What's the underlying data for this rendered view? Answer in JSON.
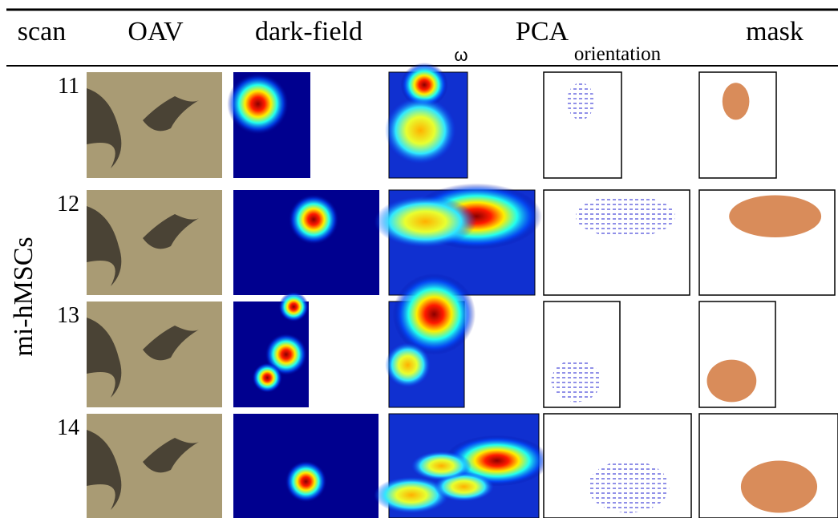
{
  "header": {
    "scan": "scan",
    "oav": "OAV",
    "dark_field": "dark-field",
    "pca": "PCA",
    "omega": "ω",
    "orientation": "orientation",
    "mask": "mask"
  },
  "side_label": "mi-hMSCs",
  "rows": [
    {
      "scan": "11"
    },
    {
      "scan": "12"
    },
    {
      "scan": "13"
    },
    {
      "scan": "14"
    }
  ]
}
